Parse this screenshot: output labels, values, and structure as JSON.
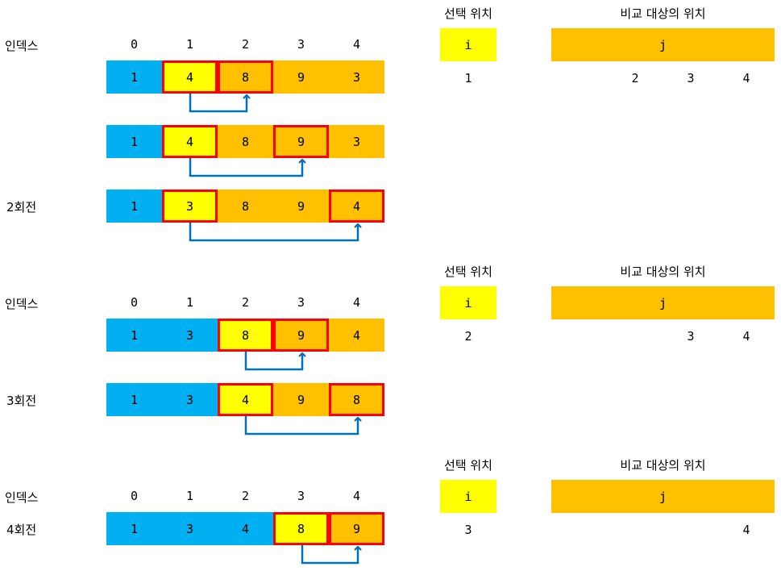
{
  "labels": {
    "index": "인덱스",
    "round2": "2회전",
    "round3": "3회전",
    "round4": "4회전",
    "selected_position": "선택 위치",
    "compare_position": "비교 대상의 위치",
    "i": "i",
    "j": "j"
  },
  "indices": [
    "0",
    "1",
    "2",
    "3",
    "4"
  ],
  "rows": [
    {
      "values": [
        "1",
        "4",
        "8",
        "9",
        "3"
      ]
    },
    {
      "values": [
        "1",
        "4",
        "8",
        "9",
        "3"
      ]
    },
    {
      "values": [
        "1",
        "3",
        "8",
        "9",
        "4"
      ]
    },
    {
      "values": [
        "1",
        "3",
        "8",
        "9",
        "4"
      ]
    },
    {
      "values": [
        "1",
        "3",
        "4",
        "9",
        "8"
      ]
    },
    {
      "values": [
        "1",
        "3",
        "4",
        "8",
        "9"
      ]
    }
  ],
  "panels": [
    {
      "i_value": "1",
      "j_values": [
        "2",
        "3",
        "4"
      ]
    },
    {
      "i_value": "2",
      "j_values": [
        "3",
        "4"
      ]
    },
    {
      "i_value": "3",
      "j_values": [
        "4"
      ]
    }
  ],
  "colors": {
    "sorted": "#00B0F0",
    "unsorted": "#FFC000",
    "selected": "#FFFF00",
    "highlight": "#FF0000",
    "arrow": "#0070C0"
  }
}
